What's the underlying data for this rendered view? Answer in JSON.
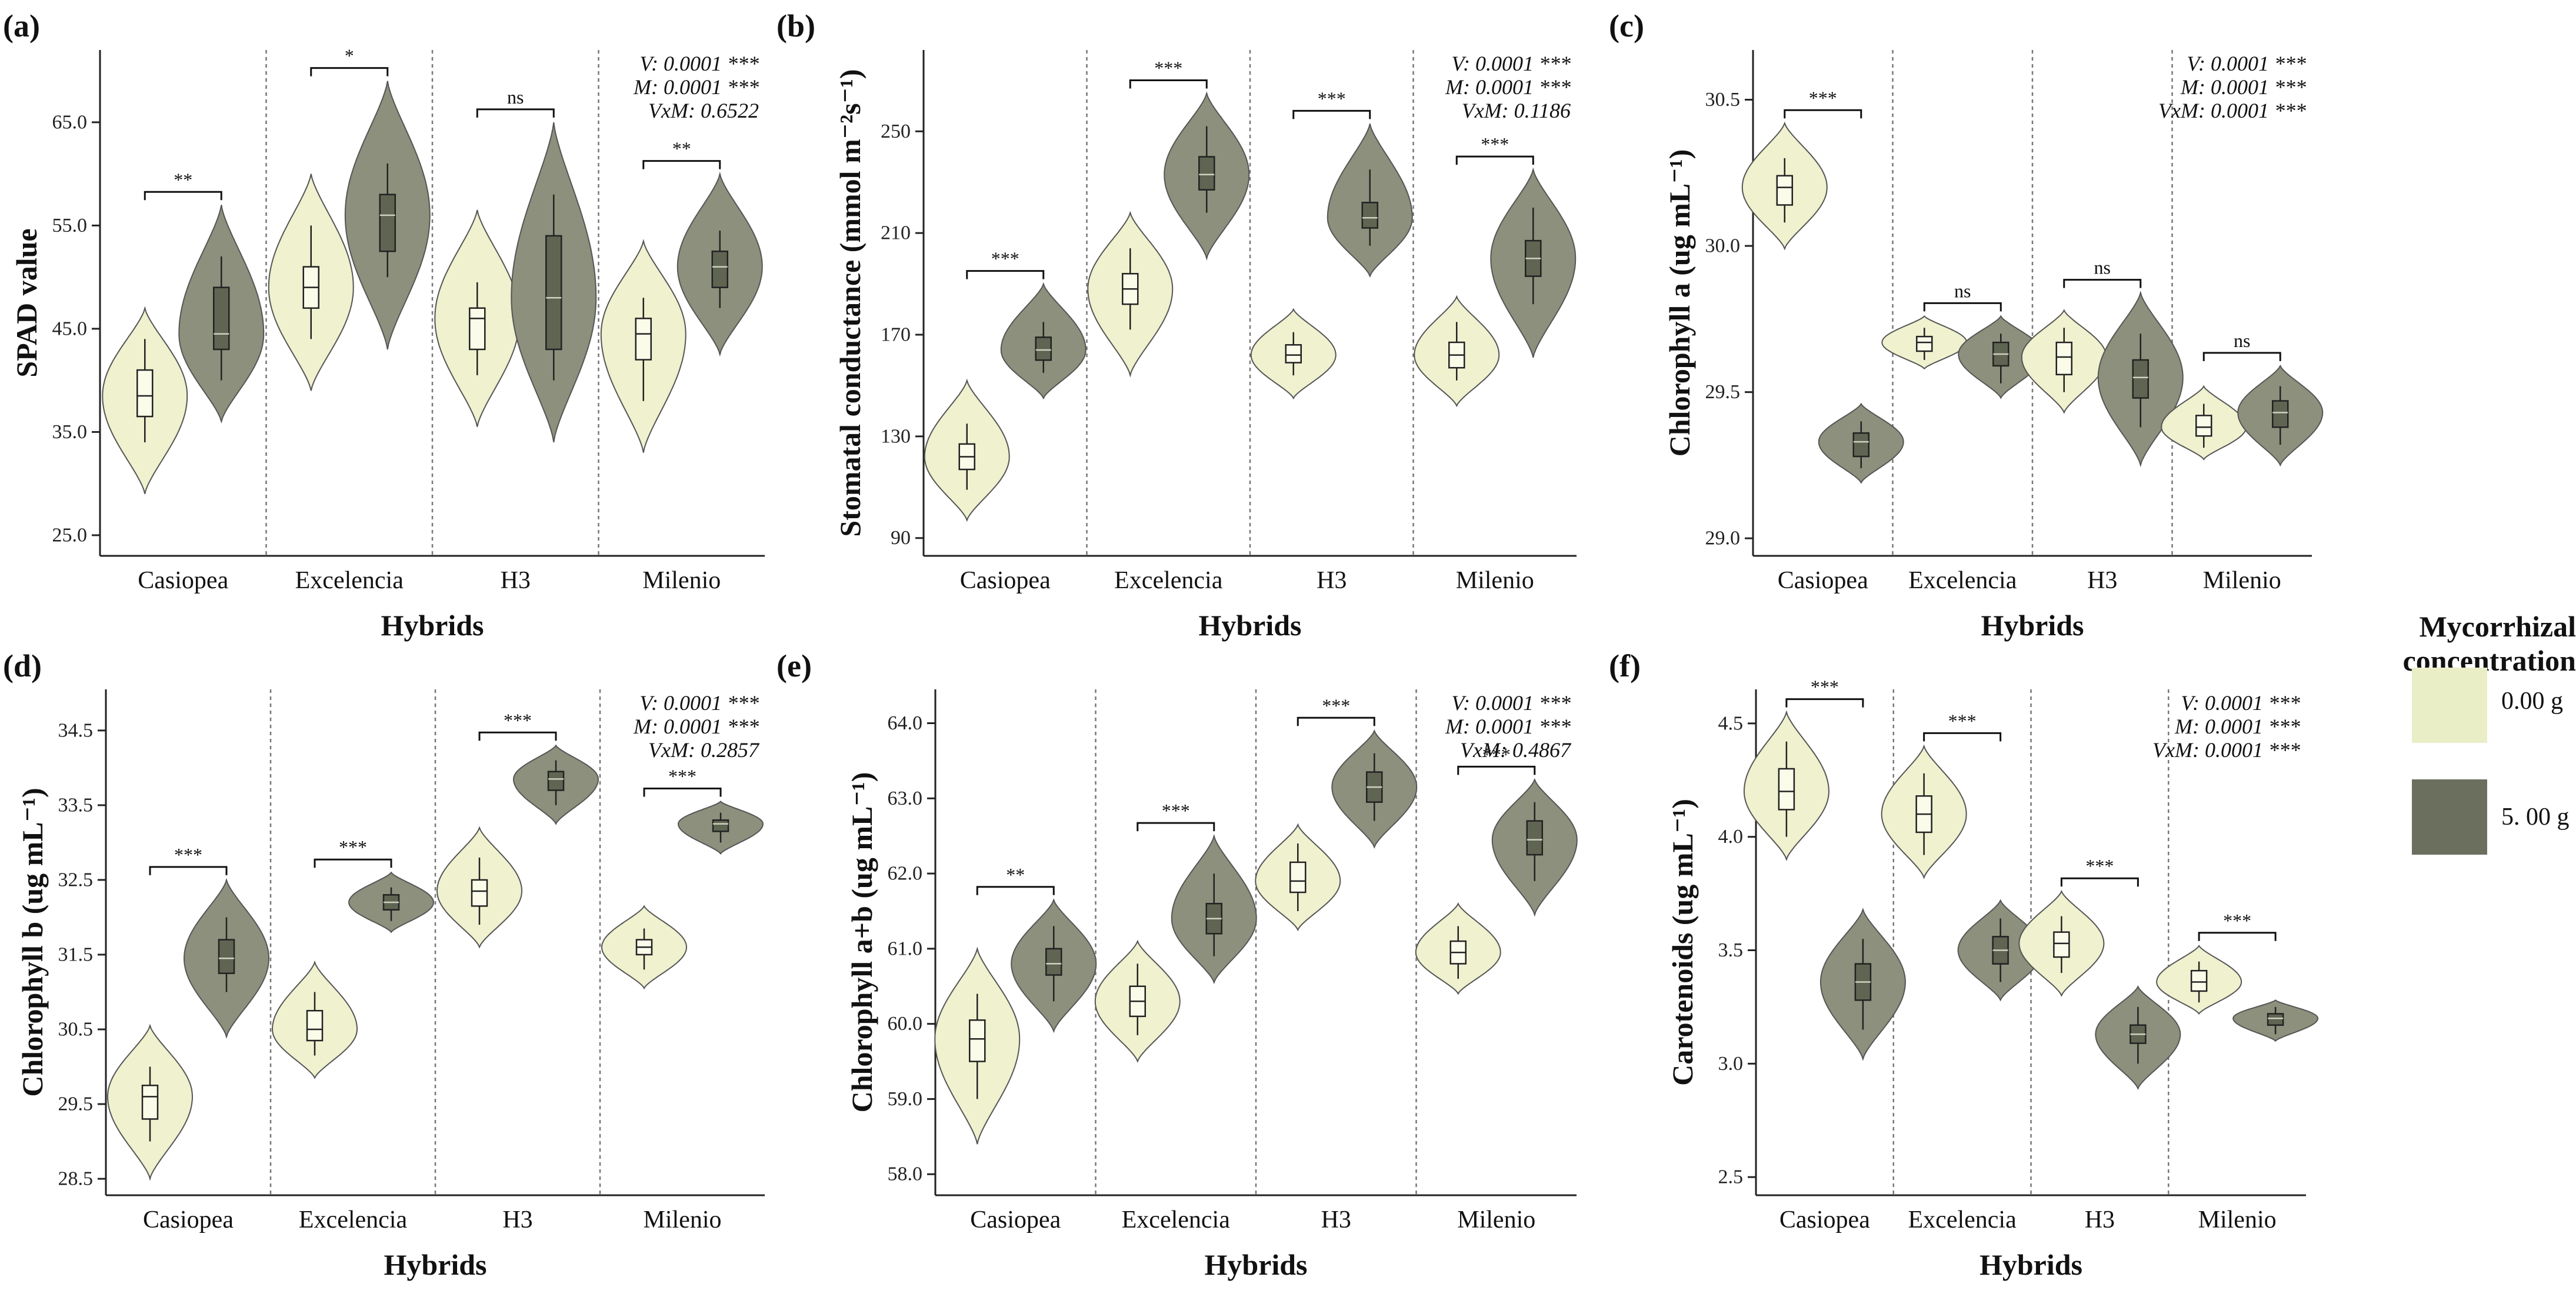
{
  "colors": {
    "control_fill": "#eff1cf",
    "treatment_fill": "#8c907c",
    "box_control": "#fafbe9",
    "box_treatment": "#5f6552",
    "legend_control": "#eaeec7",
    "legend_treatment": "#6a705d",
    "axis": "#222222",
    "separator": "#777777"
  },
  "legend": {
    "title_line1": "Mycorrhizal",
    "title_line2": "concentration",
    "items": [
      {
        "label": "0.00 g",
        "color_key": "legend_control"
      },
      {
        "label": "5. 00 g",
        "color_key": "legend_treatment"
      }
    ]
  },
  "chart_data": [
    {
      "id": "a",
      "panel_label": "(a)",
      "type": "violin",
      "ylabel": "SPAD value",
      "xlabel": "Hybrids",
      "ylim": [
        23,
        72
      ],
      "yticks": [
        25,
        35,
        45,
        55,
        65
      ],
      "ytick_labels": [
        "25.0",
        "35.0",
        "45.0",
        "55.0",
        "65.0"
      ],
      "categories": [
        "Casiopea",
        "Excelencia",
        "H3",
        "Milenio"
      ],
      "stats": [
        "V: 0.0001 ***",
        "M: 0.0001 ***",
        "VxM: 0.6522"
      ],
      "groups": [
        {
          "sig": "**",
          "control": {
            "min": 29,
            "max": 47,
            "q1": 36.5,
            "med": 38.5,
            "q3": 41,
            "wl": 34,
            "wh": 44
          },
          "treatment": {
            "min": 36,
            "max": 57,
            "q1": 43,
            "med": 44.5,
            "q3": 49,
            "wl": 40,
            "wh": 52
          }
        },
        {
          "sig": "*",
          "control": {
            "min": 39,
            "max": 60,
            "q1": 47,
            "med": 49,
            "q3": 51,
            "wl": 44,
            "wh": 55
          },
          "treatment": {
            "min": 43,
            "max": 69,
            "q1": 52.5,
            "med": 56,
            "q3": 58,
            "wl": 50,
            "wh": 61
          }
        },
        {
          "sig": "ns",
          "control": {
            "min": 35.5,
            "max": 56.5,
            "q1": 43,
            "med": 46,
            "q3": 47,
            "wl": 40.5,
            "wh": 49.5
          },
          "treatment": {
            "min": 34,
            "max": 65,
            "q1": 43,
            "med": 48,
            "q3": 54,
            "wl": 40,
            "wh": 58
          }
        },
        {
          "sig": "**",
          "control": {
            "min": 33,
            "max": 53.5,
            "q1": 42,
            "med": 44.5,
            "q3": 46,
            "wl": 38,
            "wh": 48
          },
          "treatment": {
            "min": 42.5,
            "max": 60,
            "q1": 49,
            "med": 51,
            "q3": 52.5,
            "wl": 47,
            "wh": 54.5
          }
        }
      ]
    },
    {
      "id": "b",
      "panel_label": "(b)",
      "type": "violin",
      "ylabel": "Stomatal conductance (mmol m⁻²s⁻¹)",
      "xlabel": "Hybrids",
      "ylim": [
        83,
        282
      ],
      "yticks": [
        90,
        130,
        170,
        210,
        250
      ],
      "ytick_labels": [
        "90",
        "130",
        "170",
        "210",
        "250"
      ],
      "categories": [
        "Casiopea",
        "Excelencia",
        "H3",
        "Milenio"
      ],
      "stats": [
        "V: 0.0001 ***",
        "M: 0.0001 ***",
        "VxM: 0.1186"
      ],
      "groups": [
        {
          "sig": "***",
          "control": {
            "min": 97,
            "max": 152,
            "q1": 117,
            "med": 122,
            "q3": 127,
            "wl": 109,
            "wh": 135
          },
          "treatment": {
            "min": 145,
            "max": 190,
            "q1": 160,
            "med": 164,
            "q3": 169,
            "wl": 155,
            "wh": 175
          }
        },
        {
          "sig": "***",
          "control": {
            "min": 154,
            "max": 218,
            "q1": 182,
            "med": 188,
            "q3": 194,
            "wl": 172,
            "wh": 204
          },
          "treatment": {
            "min": 200,
            "max": 265,
            "q1": 227,
            "med": 233,
            "q3": 240,
            "wl": 218,
            "wh": 252
          }
        },
        {
          "sig": "***",
          "control": {
            "min": 145,
            "max": 180,
            "q1": 159,
            "med": 162,
            "q3": 166,
            "wl": 154,
            "wh": 171
          },
          "treatment": {
            "min": 193,
            "max": 253,
            "q1": 212,
            "med": 216,
            "q3": 222,
            "wl": 205,
            "wh": 235
          }
        },
        {
          "sig": "***",
          "control": {
            "min": 142,
            "max": 185,
            "q1": 157,
            "med": 162,
            "q3": 167,
            "wl": 152,
            "wh": 175
          },
          "treatment": {
            "min": 161,
            "max": 235,
            "q1": 193,
            "med": 200,
            "q3": 207,
            "wl": 182,
            "wh": 220
          }
        }
      ]
    },
    {
      "id": "c",
      "panel_label": "(c)",
      "type": "violin",
      "ylabel": "Chlorophyll a (ug mL⁻¹)",
      "xlabel": "Hybrids",
      "ylim": [
        28.94,
        30.67
      ],
      "yticks": [
        29.0,
        29.5,
        30.0,
        30.5
      ],
      "ytick_labels": [
        "29.0",
        "29.5",
        "30.0",
        "30.5"
      ],
      "categories": [
        "Casiopea",
        "Excelencia",
        "H3",
        "Milenio"
      ],
      "stats": [
        "V: 0.0001 ***",
        "M: 0.0001 ***",
        "VxM: 0.0001 ***"
      ],
      "groups": [
        {
          "sig": "***",
          "control": {
            "min": 29.99,
            "max": 30.42,
            "q1": 30.14,
            "med": 30.2,
            "q3": 30.24,
            "wl": 30.08,
            "wh": 30.3
          },
          "treatment": {
            "min": 29.19,
            "max": 29.46,
            "q1": 29.28,
            "med": 29.33,
            "q3": 29.36,
            "wl": 29.24,
            "wh": 29.4
          }
        },
        {
          "sig": "ns",
          "control": {
            "min": 29.58,
            "max": 29.76,
            "q1": 29.64,
            "med": 29.67,
            "q3": 29.69,
            "wl": 29.61,
            "wh": 29.72
          },
          "treatment": {
            "min": 29.48,
            "max": 29.76,
            "q1": 29.59,
            "med": 29.63,
            "q3": 29.67,
            "wl": 29.53,
            "wh": 29.7
          }
        },
        {
          "sig": "ns",
          "control": {
            "min": 29.43,
            "max": 29.78,
            "q1": 29.56,
            "med": 29.62,
            "q3": 29.67,
            "wl": 29.5,
            "wh": 29.72
          },
          "treatment": {
            "min": 29.25,
            "max": 29.84,
            "q1": 29.48,
            "med": 29.55,
            "q3": 29.61,
            "wl": 29.38,
            "wh": 29.7
          }
        },
        {
          "sig": "ns",
          "control": {
            "min": 29.27,
            "max": 29.52,
            "q1": 29.35,
            "med": 29.38,
            "q3": 29.42,
            "wl": 29.31,
            "wh": 29.46
          },
          "treatment": {
            "min": 29.25,
            "max": 29.59,
            "q1": 29.38,
            "med": 29.43,
            "q3": 29.47,
            "wl": 29.32,
            "wh": 29.52
          }
        }
      ]
    },
    {
      "id": "d",
      "panel_label": "(d)",
      "type": "violin",
      "ylabel": "Chlorophyll b (ug mL⁻¹)",
      "xlabel": "Hybrids",
      "ylim": [
        28.28,
        35.05
      ],
      "yticks": [
        28.5,
        29.5,
        30.5,
        31.5,
        32.5,
        33.5,
        34.5
      ],
      "ytick_labels": [
        "28.5",
        "29.5",
        "30.5",
        "31.5",
        "32.5",
        "33.5",
        "34.5"
      ],
      "categories": [
        "Casiopea",
        "Excelencia",
        "H3",
        "Milenio"
      ],
      "stats": [
        "V: 0.0001 ***",
        "M: 0.0001 ***",
        "VxM: 0.2857"
      ],
      "groups": [
        {
          "sig": "***",
          "control": {
            "min": 28.5,
            "max": 30.55,
            "q1": 29.3,
            "med": 29.6,
            "q3": 29.75,
            "wl": 29.0,
            "wh": 30.0
          },
          "treatment": {
            "min": 30.4,
            "max": 32.5,
            "q1": 31.25,
            "med": 31.45,
            "q3": 31.7,
            "wl": 31.0,
            "wh": 32.0
          }
        },
        {
          "sig": "***",
          "control": {
            "min": 29.85,
            "max": 31.4,
            "q1": 30.35,
            "med": 30.5,
            "q3": 30.75,
            "wl": 30.15,
            "wh": 31.0
          },
          "treatment": {
            "min": 31.8,
            "max": 32.6,
            "q1": 32.1,
            "med": 32.2,
            "q3": 32.3,
            "wl": 31.95,
            "wh": 32.4
          }
        },
        {
          "sig": "***",
          "control": {
            "min": 31.6,
            "max": 33.2,
            "q1": 32.15,
            "med": 32.35,
            "q3": 32.5,
            "wl": 31.9,
            "wh": 32.8
          },
          "treatment": {
            "min": 33.25,
            "max": 34.3,
            "q1": 33.7,
            "med": 33.85,
            "q3": 33.95,
            "wl": 33.5,
            "wh": 34.1
          }
        },
        {
          "sig": "***",
          "control": {
            "min": 31.05,
            "max": 32.15,
            "q1": 31.5,
            "med": 31.6,
            "q3": 31.7,
            "wl": 31.3,
            "wh": 31.85
          },
          "treatment": {
            "min": 32.85,
            "max": 33.55,
            "q1": 33.15,
            "med": 33.25,
            "q3": 33.3,
            "wl": 33.0,
            "wh": 33.4
          }
        }
      ]
    },
    {
      "id": "e",
      "panel_label": "(e)",
      "type": "violin",
      "ylabel": "Chlorophyll a+b (ug mL⁻¹)",
      "xlabel": "Hybrids",
      "ylim": [
        57.72,
        64.45
      ],
      "yticks": [
        58.0,
        59.0,
        60.0,
        61.0,
        62.0,
        63.0,
        64.0
      ],
      "ytick_labels": [
        "58.0",
        "59.0",
        "60.0",
        "61.0",
        "62.0",
        "63.0",
        "64.0"
      ],
      "categories": [
        "Casiopea",
        "Excelencia",
        "H3",
        "Milenio"
      ],
      "stats": [
        "V: 0.0001 ***",
        "M: 0.0001 ***",
        "VxM: 0.4867"
      ],
      "groups": [
        {
          "sig": "**",
          "control": {
            "min": 58.4,
            "max": 61.0,
            "q1": 59.5,
            "med": 59.8,
            "q3": 60.05,
            "wl": 59.0,
            "wh": 60.4
          },
          "treatment": {
            "min": 59.9,
            "max": 61.65,
            "q1": 60.65,
            "med": 60.8,
            "q3": 61.0,
            "wl": 60.3,
            "wh": 61.3
          }
        },
        {
          "sig": "***",
          "control": {
            "min": 59.5,
            "max": 61.1,
            "q1": 60.1,
            "med": 60.3,
            "q3": 60.5,
            "wl": 59.85,
            "wh": 60.8
          },
          "treatment": {
            "min": 60.55,
            "max": 62.5,
            "q1": 61.2,
            "med": 61.4,
            "q3": 61.6,
            "wl": 60.9,
            "wh": 62.0
          }
        },
        {
          "sig": "***",
          "control": {
            "min": 61.25,
            "max": 62.65,
            "q1": 61.75,
            "med": 61.9,
            "q3": 62.15,
            "wl": 61.5,
            "wh": 62.4
          },
          "treatment": {
            "min": 62.35,
            "max": 63.9,
            "q1": 62.95,
            "med": 63.15,
            "q3": 63.35,
            "wl": 62.7,
            "wh": 63.6
          }
        },
        {
          "sig": "***",
          "control": {
            "min": 60.4,
            "max": 61.6,
            "q1": 60.8,
            "med": 60.95,
            "q3": 61.1,
            "wl": 60.6,
            "wh": 61.3
          },
          "treatment": {
            "min": 61.45,
            "max": 63.25,
            "q1": 62.25,
            "med": 62.45,
            "q3": 62.7,
            "wl": 61.9,
            "wh": 62.95
          }
        }
      ]
    },
    {
      "id": "f",
      "panel_label": "(f)",
      "type": "violin",
      "ylabel": "Carotenoids (ug mL⁻¹)",
      "xlabel": "Hybrids",
      "ylim": [
        2.42,
        4.65
      ],
      "yticks": [
        2.5,
        3.0,
        3.5,
        4.0,
        4.5
      ],
      "ytick_labels": [
        "2.5",
        "3.0",
        "3.5",
        "4.0",
        "4.5"
      ],
      "categories": [
        "Casiopea",
        "Excelencia",
        "H3",
        "Milenio"
      ],
      "stats": [
        "V: 0.0001 ***",
        "M: 0.0001 ***",
        "VxM: 0.0001 ***"
      ],
      "groups": [
        {
          "sig": "***",
          "control": {
            "min": 3.9,
            "max": 4.55,
            "q1": 4.12,
            "med": 4.2,
            "q3": 4.3,
            "wl": 4.0,
            "wh": 4.42
          },
          "treatment": {
            "min": 3.02,
            "max": 3.68,
            "q1": 3.28,
            "med": 3.36,
            "q3": 3.44,
            "wl": 3.15,
            "wh": 3.55
          }
        },
        {
          "sig": "***",
          "control": {
            "min": 3.82,
            "max": 4.4,
            "q1": 4.02,
            "med": 4.1,
            "q3": 4.18,
            "wl": 3.92,
            "wh": 4.28
          },
          "treatment": {
            "min": 3.28,
            "max": 3.72,
            "q1": 3.44,
            "med": 3.5,
            "q3": 3.56,
            "wl": 3.36,
            "wh": 3.64
          }
        },
        {
          "sig": "***",
          "control": {
            "min": 3.3,
            "max": 3.76,
            "q1": 3.47,
            "med": 3.53,
            "q3": 3.58,
            "wl": 3.4,
            "wh": 3.65
          },
          "treatment": {
            "min": 2.89,
            "max": 3.34,
            "q1": 3.09,
            "med": 3.13,
            "q3": 3.17,
            "wl": 3.0,
            "wh": 3.25
          }
        },
        {
          "sig": "***",
          "control": {
            "min": 3.22,
            "max": 3.52,
            "q1": 3.32,
            "med": 3.36,
            "q3": 3.41,
            "wl": 3.27,
            "wh": 3.45
          },
          "treatment": {
            "min": 3.1,
            "max": 3.28,
            "q1": 3.17,
            "med": 3.2,
            "q3": 3.22,
            "wl": 3.13,
            "wh": 3.25
          }
        }
      ]
    }
  ]
}
